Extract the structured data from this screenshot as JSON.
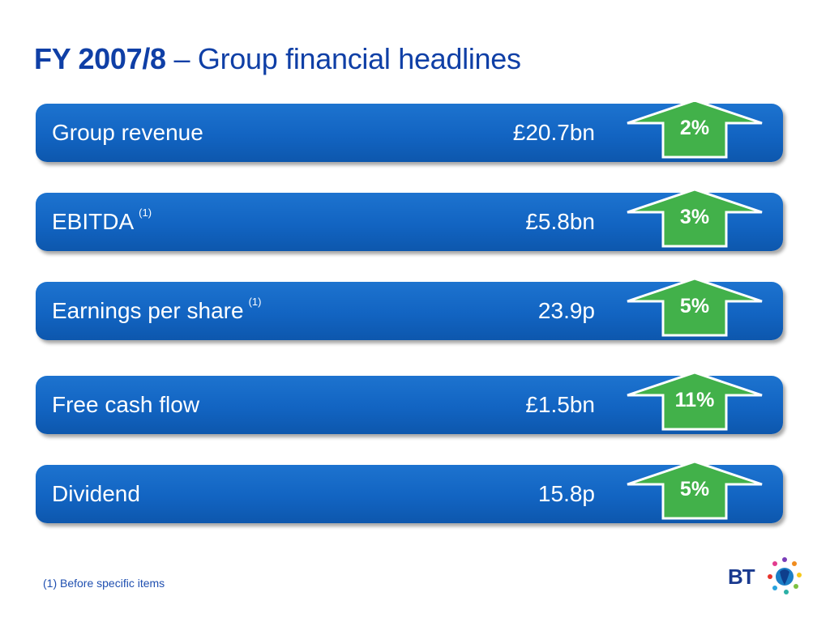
{
  "title": {
    "bold": "FY 2007/8",
    "rest": " – Group financial headlines"
  },
  "rows": [
    {
      "label": "Group revenue",
      "sup": "",
      "value": "£20.7bn",
      "change": "2%"
    },
    {
      "label": "EBITDA",
      "sup": "(1)",
      "value": "£5.8bn",
      "change": "3%"
    },
    {
      "label": "Earnings per share",
      "sup": "(1)",
      "value": "23.9p",
      "change": "5%"
    },
    {
      "label": "Free cash flow",
      "sup": "",
      "value": "£1.5bn",
      "change": "11%"
    },
    {
      "label": "Dividend",
      "sup": "",
      "value": "15.8p",
      "change": "5%"
    }
  ],
  "footnote": "(1) Before specific items",
  "logo": {
    "text": "BT"
  },
  "colors": {
    "title": "#0f3fa6",
    "row_bg": "#1264c2",
    "arrow_green": "#42b14a",
    "arrow_border": "#ffffff"
  },
  "icons": {
    "arrow": "up-arrow-icon",
    "logo": "bt-piper-logo-icon"
  }
}
